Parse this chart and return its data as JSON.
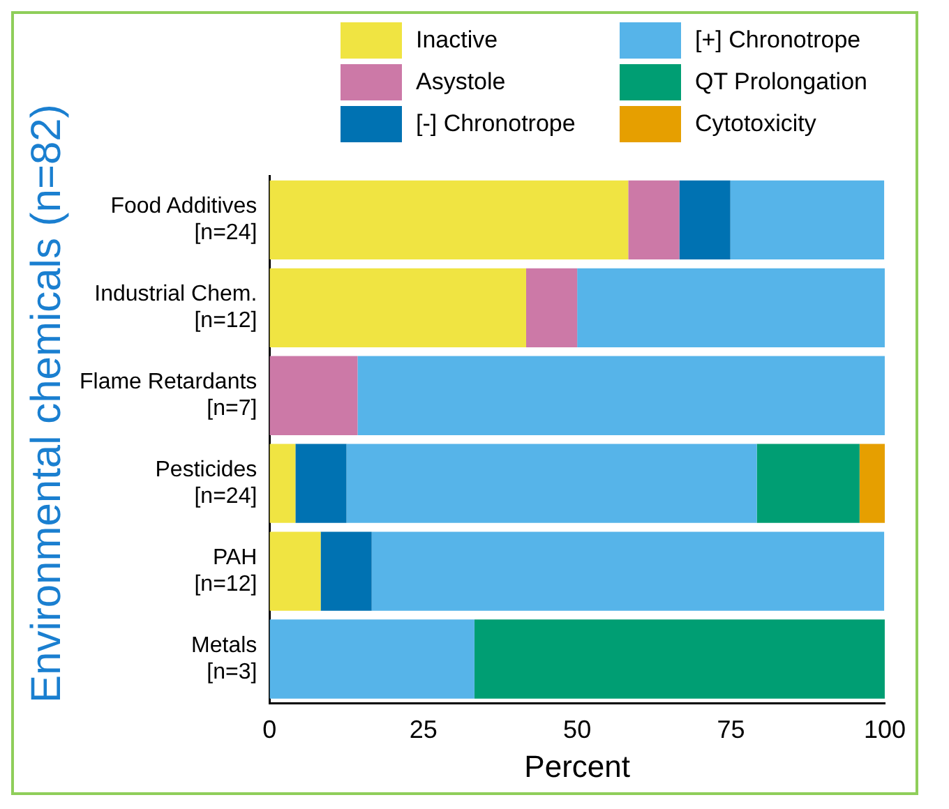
{
  "chart_data": {
    "type": "bar",
    "orientation": "horizontal",
    "stacked": true,
    "ylabel": "Environmental chemicals (n=82)",
    "xlabel": "Percent",
    "categories": [
      "Food Additives\n[n=24]",
      "Industrial Chem.\n[n=12]",
      "Flame Retardants\n[n=7]",
      "Pesticides\n[n=24]",
      "PAH\n[n=12]",
      "Metals\n[n=3]"
    ],
    "series": [
      {
        "name": "Inactive",
        "color": "#f0e442",
        "values": [
          58.3,
          41.7,
          0,
          4.2,
          8.3,
          0
        ]
      },
      {
        "name": "Asystole",
        "color": "#cc79a7",
        "values": [
          8.3,
          8.3,
          14.3,
          0,
          0,
          0
        ]
      },
      {
        "name": "[-] Chronotrope",
        "color": "#0072b2",
        "values": [
          8.3,
          0,
          0,
          8.3,
          8.3,
          0
        ]
      },
      {
        "name": "[+] Chronotrope",
        "color": "#56b4e9",
        "values": [
          25,
          50,
          85.7,
          66.7,
          83.3,
          33.3
        ]
      },
      {
        "name": "QT Prolongation",
        "color": "#009e73",
        "values": [
          0,
          0,
          0,
          16.7,
          0,
          66.7
        ]
      },
      {
        "name": "Cytotoxicity",
        "color": "#e69f00",
        "values": [
          0,
          0,
          0,
          4.2,
          0,
          0
        ]
      }
    ],
    "xlim": [
      0,
      100
    ],
    "xticks": [
      0,
      25,
      50,
      75,
      100
    ],
    "grid": false,
    "legend": "top"
  }
}
